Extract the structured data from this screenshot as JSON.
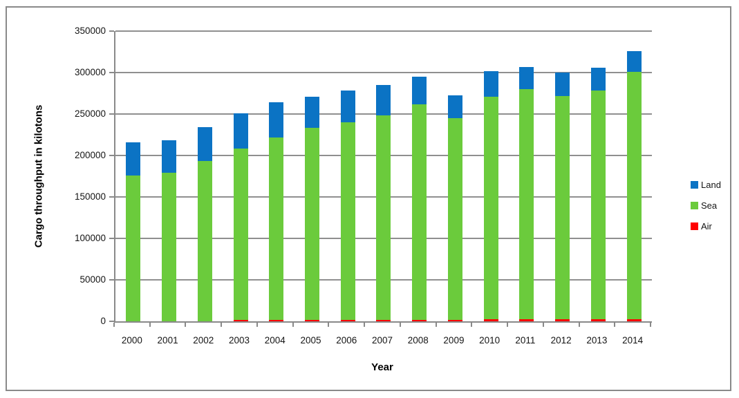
{
  "chart_data": {
    "type": "bar",
    "stacked": true,
    "title": "",
    "xlabel": "Year",
    "ylabel": "Cargo throughput in kilotons",
    "ylim": [
      0,
      350000
    ],
    "ytick_step": 50000,
    "yticks": [
      "0",
      "50000",
      "100000",
      "150000",
      "200000",
      "250000",
      "300000",
      "350000"
    ],
    "grid": "horizontal",
    "legend_position": "right",
    "categories": [
      "2000",
      "2001",
      "2002",
      "2003",
      "2004",
      "2005",
      "2006",
      "2007",
      "2008",
      "2009",
      "2010",
      "2011",
      "2012",
      "2013",
      "2014"
    ],
    "series": [
      {
        "name": "Land",
        "color": "#0B73C4",
        "values": [
          40500,
          39000,
          41000,
          42500,
          42000,
          38000,
          38000,
          37000,
          33500,
          27500,
          30500,
          27000,
          28500,
          27000,
          24500
        ]
      },
      {
        "name": "Sea",
        "color": "#6BCB3C",
        "values": [
          175500,
          179000,
          193500,
          207000,
          220500,
          231500,
          238000,
          246000,
          259500,
          243000,
          268500,
          277500,
          269000,
          276000,
          298500
        ]
      },
      {
        "name": "Air",
        "color": "#FF0000",
        "values": [
          0,
          0,
          0,
          1500,
          1500,
          1500,
          2000,
          2000,
          2000,
          2000,
          2500,
          2500,
          2500,
          2500,
          2500
        ]
      }
    ],
    "stack_order_bottom_to_top": [
      "Air",
      "Sea",
      "Land"
    ],
    "axis_color": "#898989",
    "gridline_color": "#8F8F8F"
  }
}
